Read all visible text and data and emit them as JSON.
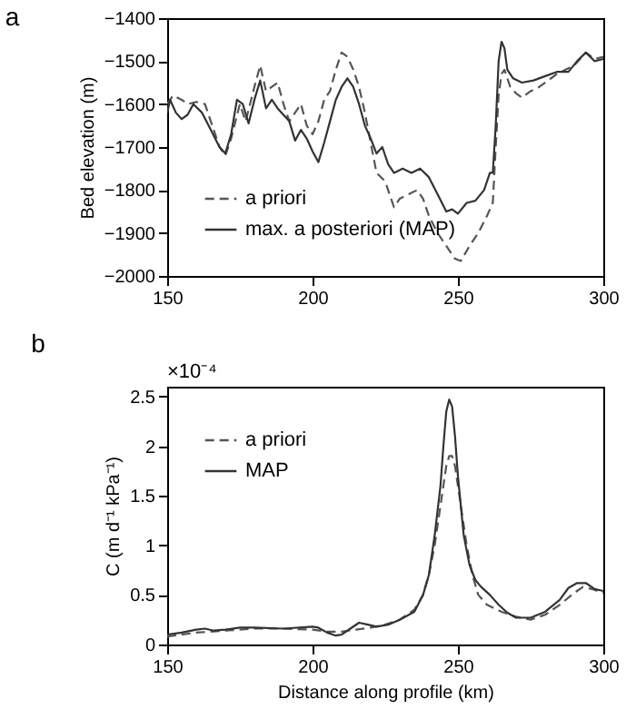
{
  "chart_data": [
    {
      "type": "line",
      "title": "a",
      "ylabel": "Bed elevation (m)",
      "xlim": [
        150,
        300
      ],
      "xticks": [
        150,
        200,
        250,
        300
      ],
      "ylim": [
        -2000,
        -1400
      ],
      "yticks": [
        -2000,
        -1900,
        -1800,
        -1700,
        -1600,
        -1500,
        -1400
      ],
      "legend": "bottom left",
      "grid": false,
      "series": [
        {
          "name": "a priori",
          "color": "#555555",
          "line_style": "dashed",
          "x": [
            150,
            152,
            155,
            157,
            160,
            163,
            165,
            168,
            170,
            172,
            175,
            177,
            180,
            182,
            184,
            186,
            188,
            190,
            192,
            194,
            196,
            198,
            200,
            202,
            204,
            206,
            208,
            210,
            212,
            214,
            216,
            218,
            220,
            222,
            225,
            228,
            230,
            233,
            236,
            238,
            240,
            243,
            246,
            249,
            251,
            254,
            257,
            260,
            262,
            263,
            264,
            265,
            266,
            268,
            270,
            272,
            275,
            278,
            281,
            284,
            287,
            290,
            294,
            297,
            300
          ],
          "values": [
            -1600,
            -1580,
            -1590,
            -1600,
            -1595,
            -1600,
            -1640,
            -1700,
            -1720,
            -1680,
            -1600,
            -1640,
            -1560,
            -1510,
            -1570,
            -1560,
            -1550,
            -1600,
            -1640,
            -1620,
            -1600,
            -1650,
            -1670,
            -1640,
            -1590,
            -1570,
            -1520,
            -1480,
            -1490,
            -1520,
            -1560,
            -1620,
            -1690,
            -1760,
            -1780,
            -1840,
            -1820,
            -1810,
            -1800,
            -1820,
            -1860,
            -1900,
            -1930,
            -1960,
            -1965,
            -1930,
            -1900,
            -1860,
            -1830,
            -1700,
            -1580,
            -1530,
            -1520,
            -1560,
            -1575,
            -1585,
            -1570,
            -1560,
            -1545,
            -1530,
            -1520,
            -1510,
            -1480,
            -1495,
            -1490
          ]
        },
        {
          "name": "max. a posteriori (MAP)",
          "color": "#333333",
          "line_style": "solid",
          "x": [
            150,
            151,
            153,
            155,
            157,
            159,
            162,
            165,
            168,
            170,
            172,
            174,
            176,
            178,
            180,
            182,
            184,
            186,
            188,
            190,
            192,
            194,
            196,
            198,
            200,
            202,
            204,
            206,
            208,
            210,
            212,
            214,
            216,
            218,
            220,
            222,
            224,
            226,
            228,
            231,
            234,
            237,
            240,
            243,
            246,
            248,
            250,
            253,
            256,
            259,
            261,
            262,
            263,
            264,
            265,
            266,
            267,
            269,
            272,
            276,
            280,
            284,
            288,
            291,
            294,
            297,
            300
          ],
          "values": [
            -1620,
            -1590,
            -1620,
            -1635,
            -1625,
            -1600,
            -1620,
            -1660,
            -1700,
            -1715,
            -1670,
            -1590,
            -1600,
            -1645,
            -1590,
            -1545,
            -1610,
            -1590,
            -1610,
            -1625,
            -1640,
            -1685,
            -1660,
            -1680,
            -1710,
            -1735,
            -1690,
            -1640,
            -1590,
            -1560,
            -1540,
            -1560,
            -1600,
            -1650,
            -1680,
            -1715,
            -1700,
            -1740,
            -1760,
            -1750,
            -1760,
            -1750,
            -1770,
            -1810,
            -1850,
            -1845,
            -1855,
            -1830,
            -1825,
            -1800,
            -1760,
            -1760,
            -1650,
            -1500,
            -1455,
            -1470,
            -1520,
            -1540,
            -1550,
            -1545,
            -1535,
            -1525,
            -1525,
            -1500,
            -1480,
            -1500,
            -1495
          ]
        }
      ]
    },
    {
      "type": "line",
      "title": "b",
      "xlabel": "Distance along profile (km)",
      "ylabel": "C (m d⁻¹ kPa⁻¹)",
      "annotations": [
        "×10⁻⁴"
      ],
      "xlim": [
        150,
        300
      ],
      "xticks": [
        150,
        200,
        250,
        300
      ],
      "ylim": [
        0,
        2.6
      ],
      "yticks": [
        0,
        0.5,
        1,
        1.5,
        2,
        2.5
      ],
      "legend": "top left",
      "grid": false,
      "series": [
        {
          "name": "a priori",
          "color": "#555555",
          "line_style": "dashed",
          "x": [
            150,
            160,
            170,
            180,
            190,
            200,
            205,
            210,
            215,
            220,
            225,
            230,
            235,
            238,
            240,
            242,
            244,
            246,
            247,
            248,
            249,
            251,
            253,
            255,
            257,
            260,
            265,
            270,
            275,
            280,
            285,
            290,
            293,
            296,
            300
          ],
          "values": [
            0.08,
            0.12,
            0.14,
            0.16,
            0.16,
            0.15,
            0.13,
            0.13,
            0.15,
            0.17,
            0.2,
            0.25,
            0.35,
            0.5,
            0.7,
            1.0,
            1.4,
            1.8,
            1.9,
            1.9,
            1.8,
            1.4,
            1.0,
            0.7,
            0.5,
            0.4,
            0.33,
            0.28,
            0.25,
            0.3,
            0.4,
            0.52,
            0.58,
            0.56,
            0.52
          ]
        },
        {
          "name": "MAP",
          "color": "#333333",
          "line_style": "solid",
          "x": [
            150,
            155,
            160,
            163,
            166,
            170,
            175,
            180,
            190,
            200,
            202,
            205,
            208,
            210,
            213,
            216,
            219,
            222,
            226,
            230,
            235,
            238,
            240,
            242,
            244,
            245,
            246,
            247,
            248,
            249,
            250,
            252,
            254,
            256,
            258,
            261,
            264,
            267,
            270,
            275,
            280,
            285,
            288,
            291,
            294,
            297,
            300
          ],
          "values": [
            0.1,
            0.12,
            0.15,
            0.16,
            0.14,
            0.15,
            0.17,
            0.17,
            0.16,
            0.18,
            0.17,
            0.12,
            0.09,
            0.1,
            0.16,
            0.22,
            0.2,
            0.18,
            0.2,
            0.25,
            0.33,
            0.5,
            0.7,
            1.1,
            1.6,
            2.0,
            2.35,
            2.47,
            2.4,
            2.1,
            1.7,
            1.1,
            0.8,
            0.65,
            0.58,
            0.5,
            0.4,
            0.32,
            0.27,
            0.27,
            0.33,
            0.45,
            0.57,
            0.62,
            0.62,
            0.56,
            0.54
          ]
        }
      ]
    }
  ]
}
